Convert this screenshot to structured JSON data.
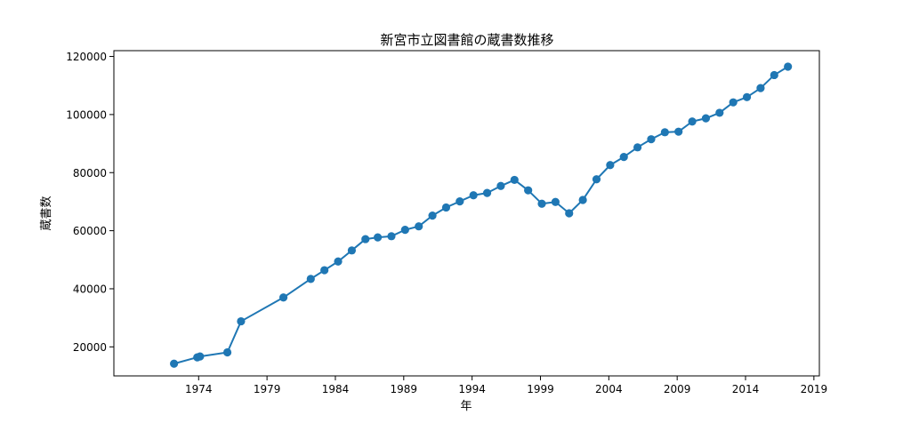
{
  "chart_data": {
    "type": "line",
    "title": "新宮市立図書館の蔵書数推移",
    "xlabel": "年",
    "ylabel": "蔵書数",
    "xlim": [
      1967.8,
      2019.4
    ],
    "ylim": [
      10000,
      122000
    ],
    "xticks": [
      1974,
      1979,
      1984,
      1989,
      1994,
      1999,
      2004,
      2009,
      2014,
      2019
    ],
    "xtick_labels": [
      "1974",
      "1979",
      "1984",
      "1989",
      "1994",
      "1999",
      "2004",
      "2009",
      "2014",
      "2019"
    ],
    "yticks": [
      20000,
      40000,
      60000,
      80000,
      100000,
      120000
    ],
    "ytick_labels": [
      "20000",
      "40000",
      "60000",
      "80000",
      "100000",
      "120000"
    ],
    "grid": false,
    "series": [
      {
        "color": "#1f77b4",
        "marker": "circle",
        "x": [
          1972.2,
          1973.9,
          1974.1,
          1976.1,
          1977.1,
          1980.2,
          1982.2,
          1983.2,
          1984.2,
          1985.2,
          1986.2,
          1987.1,
          1988.1,
          1989.1,
          1990.1,
          1991.1,
          1992.1,
          1993.1,
          1994.1,
          1995.1,
          1996.1,
          1997.1,
          1998.1,
          1999.1,
          2000.1,
          2001.1,
          2002.1,
          2003.1,
          2004.1,
          2005.1,
          2006.1,
          2007.1,
          2008.1,
          2009.1,
          2010.1,
          2011.1,
          2012.1,
          2013.1,
          2014.1,
          2015.1,
          2016.1,
          2017.1
        ],
        "y": [
          14200,
          16400,
          16700,
          18100,
          28800,
          37000,
          43400,
          46400,
          49400,
          53200,
          57100,
          57700,
          58100,
          60300,
          61500,
          65200,
          68000,
          70100,
          72200,
          73000,
          75400,
          77500,
          73900,
          69300,
          69900,
          66000,
          70600,
          77700,
          82600,
          85400,
          88700,
          91500,
          93900,
          94100,
          97600,
          98700,
          100600,
          104200,
          106000,
          109100,
          113600,
          116500
        ]
      }
    ]
  }
}
